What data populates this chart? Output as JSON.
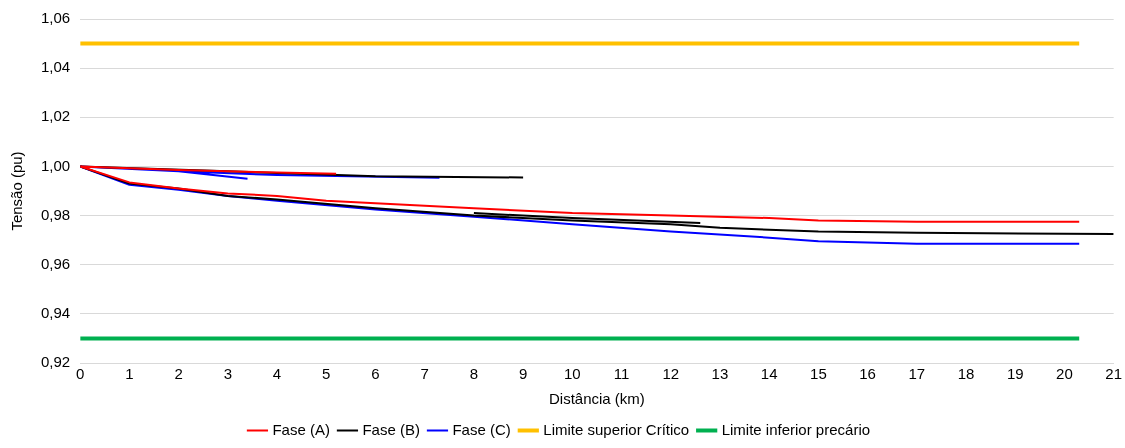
{
  "chart_data": {
    "type": "line",
    "xlabel": "Distância (km)",
    "ylabel": "Tensão (pu)",
    "xlim": [
      0,
      21
    ],
    "xticks": [
      0,
      1,
      2,
      3,
      4,
      5,
      6,
      7,
      8,
      9,
      10,
      11,
      12,
      13,
      14,
      15,
      16,
      17,
      18,
      19,
      20,
      21
    ],
    "ylim": [
      0.92,
      1.06
    ],
    "yticks": [
      {
        "value": 0.92,
        "label": "0,92"
      },
      {
        "value": 0.94,
        "label": "0,94"
      },
      {
        "value": 0.96,
        "label": "0,96"
      },
      {
        "value": 0.98,
        "label": "0,98"
      },
      {
        "value": 1.0,
        "label": "1,00"
      },
      {
        "value": 1.02,
        "label": "1,02"
      },
      {
        "value": 1.04,
        "label": "1,04"
      },
      {
        "value": 1.06,
        "label": "1,06"
      }
    ],
    "grid": "y",
    "legend": "bottom",
    "marker": "none",
    "line_style": "solid",
    "series": [
      {
        "name": "Fase (A)",
        "color": "#ff0000",
        "x": [
          0,
          1,
          2,
          3,
          4,
          5,
          6,
          8,
          10,
          12,
          14,
          15,
          17,
          20.3,
          null,
          0,
          2,
          4,
          5.2
        ],
        "values": [
          1.0,
          0.9935,
          0.991,
          0.989,
          0.988,
          0.986,
          0.985,
          0.983,
          0.981,
          0.98,
          0.979,
          0.978,
          0.9775,
          0.9775,
          null,
          1.0,
          0.9985,
          0.9975,
          0.997
        ]
      },
      {
        "name": "Fase (B)",
        "color": "#000000",
        "x": [
          0,
          1,
          2,
          3,
          4,
          6,
          8,
          10,
          12,
          13,
          15,
          17,
          21,
          null,
          0,
          3,
          6,
          9,
          null,
          8,
          10,
          12.6
        ],
        "values": [
          1.0,
          0.993,
          0.991,
          0.988,
          0.9865,
          0.983,
          0.98,
          0.978,
          0.9765,
          0.975,
          0.9735,
          0.973,
          0.9725,
          null,
          1.0,
          0.998,
          0.996,
          0.9955,
          null,
          0.981,
          0.979,
          0.977
        ]
      },
      {
        "name": "Fase (C)",
        "color": "#0000ff",
        "x": [
          0,
          1,
          2,
          3,
          4,
          6,
          8,
          10,
          12,
          14,
          15,
          17,
          20.3,
          null,
          0,
          2,
          4,
          7.3,
          null,
          2,
          3.4
        ],
        "values": [
          1.0,
          0.9925,
          0.9905,
          0.988,
          0.986,
          0.9825,
          0.9795,
          0.9765,
          0.9735,
          0.971,
          0.9695,
          0.9685,
          0.9685,
          null,
          1.0,
          0.998,
          0.9965,
          0.9954,
          null,
          0.998,
          0.995
        ]
      },
      {
        "name": "Limite superior Crítico",
        "color": "#ffc000",
        "x": [
          0,
          20.3
        ],
        "values": [
          1.05,
          1.05
        ]
      },
      {
        "name": "Limite inferior precário",
        "color": "#00b050",
        "x": [
          0,
          20.3
        ],
        "values": [
          0.93,
          0.93
        ]
      }
    ]
  }
}
